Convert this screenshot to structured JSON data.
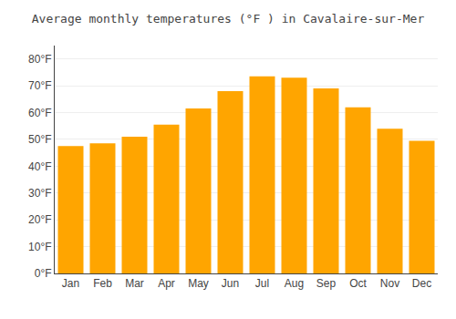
{
  "chart_data": {
    "type": "bar",
    "title": "Average monthly temperatures (°F ) in Cavalaire-sur-Mer",
    "categories": [
      "Jan",
      "Feb",
      "Mar",
      "Apr",
      "May",
      "Jun",
      "Jul",
      "Aug",
      "Sep",
      "Oct",
      "Nov",
      "Dec"
    ],
    "values": [
      47.5,
      48.5,
      51.0,
      55.5,
      61.5,
      68.0,
      73.5,
      73.0,
      69.0,
      62.0,
      54.0,
      49.5
    ],
    "color": "#FFA500",
    "ylim": [
      0,
      85
    ],
    "yticks": [
      {
        "value": 0,
        "label": "0°F"
      },
      {
        "value": 10,
        "label": "10°F"
      },
      {
        "value": 20,
        "label": "20°F"
      },
      {
        "value": 30,
        "label": "30°F"
      },
      {
        "value": 40,
        "label": "40°F"
      },
      {
        "value": 50,
        "label": "50°F"
      },
      {
        "value": 60,
        "label": "60°F"
      },
      {
        "value": 70,
        "label": "70°F"
      },
      {
        "value": 80,
        "label": "80°F"
      }
    ],
    "grid": true
  }
}
